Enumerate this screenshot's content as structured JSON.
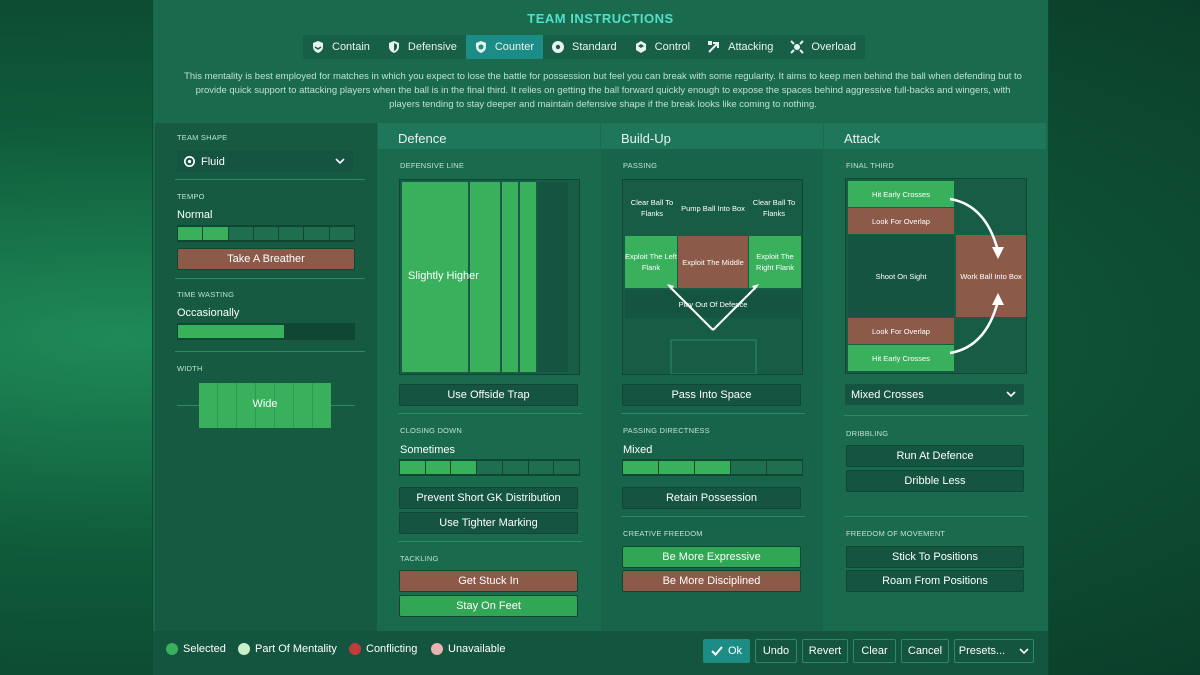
{
  "header": {
    "title": "TEAM INSTRUCTIONS"
  },
  "tabs": [
    {
      "label": "Contain",
      "icon": "shield-hands-icon"
    },
    {
      "label": "Defensive",
      "icon": "shield-icon"
    },
    {
      "label": "Counter",
      "icon": "counter-shield-icon",
      "active": true
    },
    {
      "label": "Standard",
      "icon": "ball-icon"
    },
    {
      "label": "Control",
      "icon": "control-shield-icon"
    },
    {
      "label": "Attacking",
      "icon": "attack-arrow-icon"
    },
    {
      "label": "Overload",
      "icon": "overload-icon"
    }
  ],
  "description": "This mentality is best employed for matches in which you expect to lose the battle for possession but feel you can break with some regularity.  It aims to keep men behind the ball when defending but to provide quick support to attacking players when the ball is in the final third. It relies on getting the ball forward quickly enough to expose the spaces behind aggressive full-backs and wingers, with players tending to stay deeper and maintain defensive shape if the break looks like coming to nothing.",
  "left": {
    "team_shape_label": "TEAM SHAPE",
    "team_shape_value": "Fluid",
    "tempo_label": "TEMPO",
    "tempo_value": "Normal",
    "tempo_level": 0.33,
    "tempo_button": "Take A Breather",
    "time_wasting_label": "TIME WASTING",
    "time_wasting_value": "Occasionally",
    "time_wasting_level": 0.6,
    "width_label": "WIDTH",
    "width_value": "Wide"
  },
  "defence": {
    "header": "Defence",
    "line_label": "DEFENSIVE LINE",
    "line_value": "Slightly Higher",
    "offside_button": "Use Offside Trap",
    "closing_label": "CLOSING DOWN",
    "closing_value": "Sometimes",
    "closing_level": 0.4,
    "prevent_gk_button": "Prevent Short GK Distribution",
    "tighter_marking_button": "Use Tighter Marking",
    "tackling_label": "TACKLING",
    "get_stuck_button": "Get Stuck In",
    "stay_feet_button": "Stay On Feet"
  },
  "buildup": {
    "header": "Build-Up",
    "passing_label": "PASSING",
    "zones": {
      "clear_left": "Clear Ball To Flanks",
      "pump": "Pump Ball Into Box",
      "clear_right": "Clear Ball To Flanks",
      "exploit_left": "Exploit The Left Flank",
      "exploit_middle": "Exploit The Middle",
      "exploit_right": "Exploit The Right Flank",
      "play_out": "Play Out Of Defence"
    },
    "space_button": "Pass Into Space",
    "directness_label": "PASSING DIRECTNESS",
    "directness_value": "Mixed",
    "directness_level": 0.5,
    "retain_button": "Retain Possession",
    "creative_label": "CREATIVE FREEDOM",
    "expressive_button": "Be More Expressive",
    "disciplined_button": "Be More Disciplined"
  },
  "attack": {
    "header": "Attack",
    "final_third_label": "FINAL THIRD",
    "zones": {
      "early_top": "Hit Early Crosses",
      "overlap_top": "Look For Overlap",
      "shoot": "Shoot On Sight",
      "work_box": "Work Ball Into Box",
      "overlap_bottom": "Look For Overlap",
      "early_bottom": "Hit Early Crosses"
    },
    "crosses_dropdown": "Mixed Crosses",
    "dribbling_label": "DRIBBLING",
    "run_button": "Run At Defence",
    "dribble_less_button": "Dribble Less",
    "movement_label": "FREEDOM OF MOVEMENT",
    "stick_button": "Stick To Positions",
    "roam_button": "Roam From Positions"
  },
  "legend": [
    {
      "label": "Selected",
      "color": "#39b15c"
    },
    {
      "label": "Part Of Mentality",
      "color": "#c9f0c8"
    },
    {
      "label": "Conflicting",
      "color": "#c23b3b"
    },
    {
      "label": "Unavailable",
      "color": "#e8b3b3"
    }
  ],
  "footer": {
    "ok": "Ok",
    "undo": "Undo",
    "revert": "Revert",
    "clear": "Clear",
    "cancel": "Cancel",
    "presets": "Presets..."
  }
}
